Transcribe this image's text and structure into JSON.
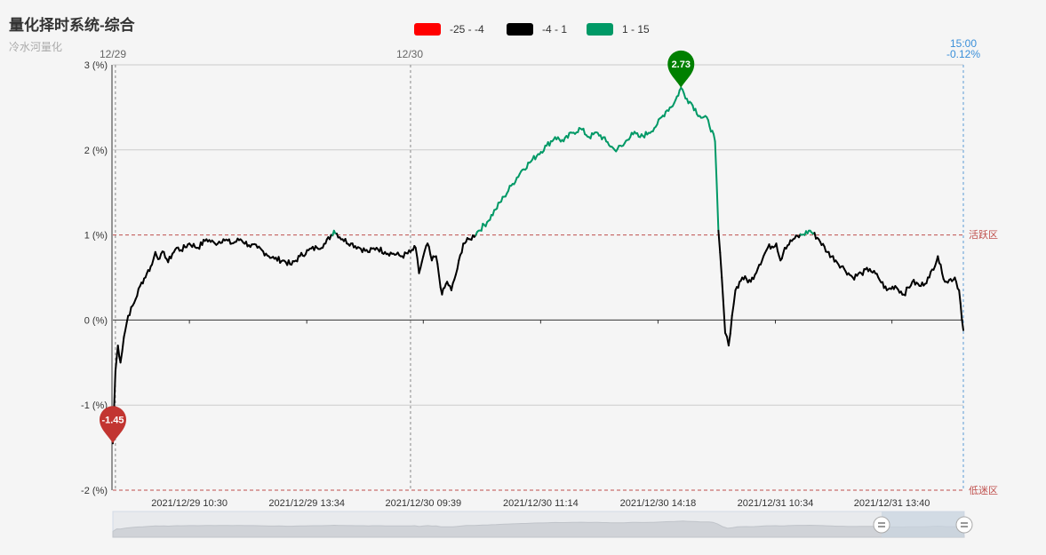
{
  "header": {
    "title": "量化择时系统-综合",
    "subtitle": "冷水河量化"
  },
  "legend": [
    {
      "label": "-25 - -4",
      "color": "#ff0000"
    },
    {
      "label": "-4 - 1",
      "color": "#000000"
    },
    {
      "label": "1 - 15",
      "color": "#009966"
    }
  ],
  "chart_data": {
    "type": "line",
    "y_unit": "(%)",
    "ylim": [
      -2,
      3
    ],
    "y_ticks": [
      -2,
      -1,
      0,
      1,
      2,
      3
    ],
    "y_tick_labels": [
      "-2 (%)",
      "-1 (%)",
      "0 (%)",
      "1 (%)",
      "2 (%)",
      "3 (%)"
    ],
    "x_tick_labels": [
      "2021/12/29 10:30",
      "2021/12/29 13:34",
      "2021/12/30 09:39",
      "2021/12/30 11:14",
      "2021/12/30 14:18",
      "2021/12/31 10:34",
      "2021/12/31 13:40"
    ],
    "day_labels": [
      "12/29",
      "12/30"
    ],
    "end_label": {
      "time": "15:00",
      "value": "-0.12%"
    },
    "thresholds": [
      {
        "value": 1,
        "label": "活跃区",
        "color": "#c0504d"
      },
      {
        "value": -2,
        "label": "低迷区",
        "color": "#c0504d"
      }
    ],
    "markers": [
      {
        "type": "max",
        "value": 2.73,
        "label": "2.73",
        "color": "#008000"
      },
      {
        "type": "min",
        "value": -1.45,
        "label": "-1.45",
        "color": "#c23531"
      }
    ],
    "visual_map": [
      {
        "range": [
          -25,
          -4
        ],
        "color": "#ff0000"
      },
      {
        "range": [
          -4,
          1
        ],
        "color": "#000000"
      },
      {
        "range": [
          1,
          15
        ],
        "color": "#009966"
      }
    ],
    "series_keypoints": [
      [
        0.0,
        -1.45
      ],
      [
        0.3,
        -0.6
      ],
      [
        0.6,
        -0.3
      ],
      [
        0.9,
        -0.5
      ],
      [
        1.3,
        -0.2
      ],
      [
        1.8,
        0.05
      ],
      [
        2.5,
        0.2
      ],
      [
        3.2,
        0.4
      ],
      [
        4.0,
        0.55
      ],
      [
        4.6,
        0.65
      ],
      [
        5.0,
        0.8
      ],
      [
        5.5,
        0.72
      ],
      [
        6.0,
        0.8
      ],
      [
        6.5,
        0.68
      ],
      [
        7.0,
        0.78
      ],
      [
        7.5,
        0.85
      ],
      [
        8.0,
        0.82
      ],
      [
        9.0,
        0.9
      ],
      [
        10.0,
        0.85
      ],
      [
        11.0,
        0.95
      ],
      [
        12.0,
        0.9
      ],
      [
        13.0,
        0.95
      ],
      [
        14.0,
        0.9
      ],
      [
        15.0,
        0.95
      ],
      [
        16.0,
        0.88
      ],
      [
        17.0,
        0.85
      ],
      [
        18.0,
        0.78
      ],
      [
        19.0,
        0.72
      ],
      [
        20.0,
        0.7
      ],
      [
        21.0,
        0.65
      ],
      [
        22.0,
        0.75
      ],
      [
        23.0,
        0.82
      ],
      [
        24.0,
        0.85
      ],
      [
        25.0,
        0.9
      ],
      [
        26.0,
        1.05
      ],
      [
        27.0,
        0.95
      ],
      [
        28.0,
        0.9
      ],
      [
        29.0,
        0.85
      ],
      [
        30.0,
        0.8
      ],
      [
        31.0,
        0.85
      ],
      [
        32.0,
        0.8
      ],
      [
        33.0,
        0.78
      ],
      [
        34.0,
        0.75
      ],
      [
        35.0,
        0.8
      ],
      [
        35.6,
        0.85
      ],
      [
        36.0,
        0.55
      ],
      [
        36.5,
        0.75
      ],
      [
        37.0,
        0.9
      ],
      [
        37.5,
        0.7
      ],
      [
        38.0,
        0.75
      ],
      [
        38.7,
        0.3
      ],
      [
        39.3,
        0.45
      ],
      [
        39.8,
        0.35
      ],
      [
        40.5,
        0.6
      ],
      [
        41.2,
        0.9
      ],
      [
        42.0,
        0.95
      ],
      [
        43.0,
        1.05
      ],
      [
        44.0,
        1.15
      ],
      [
        45.0,
        1.3
      ],
      [
        46.0,
        1.45
      ],
      [
        47.0,
        1.6
      ],
      [
        48.0,
        1.75
      ],
      [
        49.0,
        1.85
      ],
      [
        50.0,
        1.95
      ],
      [
        51.0,
        2.05
      ],
      [
        52.0,
        2.15
      ],
      [
        53.0,
        2.1
      ],
      [
        54.0,
        2.2
      ],
      [
        55.0,
        2.25
      ],
      [
        56.0,
        2.15
      ],
      [
        57.0,
        2.2
      ],
      [
        58.0,
        2.1
      ],
      [
        59.0,
        2.0
      ],
      [
        60.0,
        2.05
      ],
      [
        61.0,
        2.2
      ],
      [
        62.0,
        2.15
      ],
      [
        63.0,
        2.2
      ],
      [
        64.0,
        2.3
      ],
      [
        65.0,
        2.45
      ],
      [
        66.0,
        2.55
      ],
      [
        66.8,
        2.73
      ],
      [
        67.5,
        2.6
      ],
      [
        68.0,
        2.55
      ],
      [
        69.0,
        2.4
      ],
      [
        70.0,
        2.35
      ],
      [
        70.8,
        2.1
      ],
      [
        71.2,
        1.05
      ],
      [
        71.6,
        0.5
      ],
      [
        72.0,
        -0.15
      ],
      [
        72.4,
        -0.3
      ],
      [
        72.8,
        0.05
      ],
      [
        73.2,
        0.35
      ],
      [
        74.0,
        0.5
      ],
      [
        75.0,
        0.45
      ],
      [
        76.0,
        0.65
      ],
      [
        77.0,
        0.85
      ],
      [
        78.0,
        0.9
      ],
      [
        78.5,
        0.7
      ],
      [
        79.0,
        0.85
      ],
      [
        80.0,
        0.95
      ],
      [
        81.0,
        1.0
      ],
      [
        82.0,
        1.05
      ],
      [
        83.0,
        0.95
      ],
      [
        84.0,
        0.8
      ],
      [
        85.0,
        0.7
      ],
      [
        86.0,
        0.6
      ],
      [
        87.0,
        0.5
      ],
      [
        88.0,
        0.55
      ],
      [
        89.0,
        0.6
      ],
      [
        90.0,
        0.5
      ],
      [
        91.0,
        0.35
      ],
      [
        92.0,
        0.4
      ],
      [
        93.0,
        0.3
      ],
      [
        94.0,
        0.45
      ],
      [
        95.0,
        0.4
      ],
      [
        96.0,
        0.5
      ],
      [
        97.0,
        0.75
      ],
      [
        97.5,
        0.55
      ],
      [
        98.0,
        0.45
      ],
      [
        99.0,
        0.5
      ],
      [
        99.5,
        0.35
      ],
      [
        100.0,
        -0.12
      ]
    ]
  }
}
